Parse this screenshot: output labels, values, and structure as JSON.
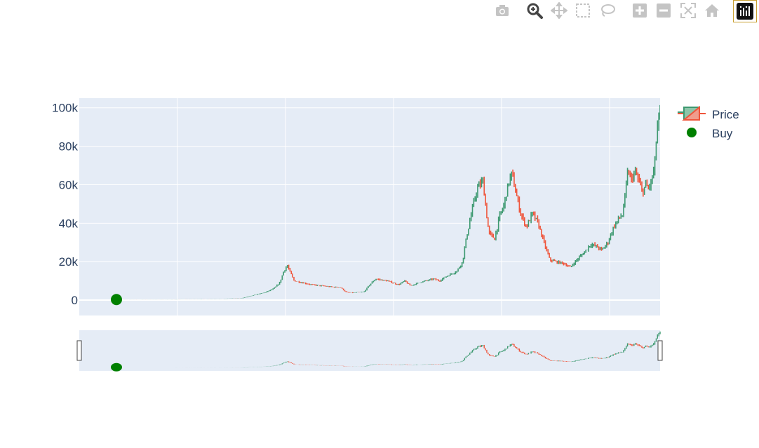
{
  "modebar": {
    "buttons": [
      {
        "name": "camera-icon",
        "title": "Download plot as a png"
      },
      {
        "name": "zoom-icon",
        "title": "Zoom",
        "active": true
      },
      {
        "name": "pan-icon",
        "title": "Pan"
      },
      {
        "name": "box-select-icon",
        "title": "Box Select"
      },
      {
        "name": "lasso-select-icon",
        "title": "Lasso Select"
      },
      {
        "name": "zoom-in-icon",
        "title": "Zoom in"
      },
      {
        "name": "zoom-out-icon",
        "title": "Zoom out"
      },
      {
        "name": "autoscale-icon",
        "title": "Autoscale"
      },
      {
        "name": "reset-axes-icon",
        "title": "Reset axes"
      },
      {
        "name": "plotly-logo-icon",
        "title": "Produced with Plotly"
      }
    ]
  },
  "colors": {
    "increasing": "#3d9970",
    "decreasing": "#ef553b",
    "buy": "#008000",
    "plot_bg": "#e5ecf6",
    "grid": "#ffffff",
    "text": "#2a3f5f",
    "logo_border": "#c8a032"
  },
  "chart_data": {
    "type": "candlestick",
    "title": "",
    "xlabel": "",
    "ylabel": "",
    "ylim": [
      -8000,
      105000
    ],
    "yticks": [
      0,
      20000,
      40000,
      60000,
      80000,
      100000
    ],
    "ytick_labels": [
      "0",
      "20k",
      "40k",
      "60k",
      "80k",
      "100k"
    ],
    "x_tick_labels": [],
    "grid": true,
    "legend_position": "top-right",
    "rangeslider": true,
    "series": [
      {
        "name": "Price",
        "kind": "ohlc",
        "x_fraction_range": [
          0.06,
          1.0
        ],
        "approx_close_path": [
          [
            0.06,
            200
          ],
          [
            0.1,
            250
          ],
          [
            0.15,
            300
          ],
          [
            0.2,
            500
          ],
          [
            0.25,
            700
          ],
          [
            0.28,
            1000
          ],
          [
            0.3,
            2500
          ],
          [
            0.32,
            4000
          ],
          [
            0.335,
            6000
          ],
          [
            0.345,
            9000
          ],
          [
            0.352,
            15000
          ],
          [
            0.358,
            18000
          ],
          [
            0.37,
            10000
          ],
          [
            0.4,
            8000
          ],
          [
            0.43,
            7000
          ],
          [
            0.45,
            6500
          ],
          [
            0.46,
            4000
          ],
          [
            0.47,
            3800
          ],
          [
            0.49,
            4200
          ],
          [
            0.5,
            8000
          ],
          [
            0.51,
            11000
          ],
          [
            0.53,
            10000
          ],
          [
            0.55,
            8000
          ],
          [
            0.56,
            10000
          ],
          [
            0.57,
            7500
          ],
          [
            0.59,
            9500
          ],
          [
            0.61,
            11000
          ],
          [
            0.62,
            10000
          ],
          [
            0.63,
            12000
          ],
          [
            0.65,
            15000
          ],
          [
            0.66,
            20000
          ],
          [
            0.665,
            30000
          ],
          [
            0.675,
            45000
          ],
          [
            0.685,
            58000
          ],
          [
            0.695,
            62000
          ],
          [
            0.7,
            48000
          ],
          [
            0.705,
            35000
          ],
          [
            0.715,
            32000
          ],
          [
            0.725,
            45000
          ],
          [
            0.73,
            48000
          ],
          [
            0.74,
            62000
          ],
          [
            0.745,
            66000
          ],
          [
            0.75,
            58000
          ],
          [
            0.76,
            45000
          ],
          [
            0.77,
            38000
          ],
          [
            0.78,
            45000
          ],
          [
            0.79,
            40000
          ],
          [
            0.8,
            30000
          ],
          [
            0.81,
            21000
          ],
          [
            0.82,
            20000
          ],
          [
            0.835,
            19000
          ],
          [
            0.845,
            17000
          ],
          [
            0.86,
            22000
          ],
          [
            0.87,
            25000
          ],
          [
            0.88,
            29000
          ],
          [
            0.89,
            28000
          ],
          [
            0.9,
            26000
          ],
          [
            0.91,
            30000
          ],
          [
            0.92,
            38000
          ],
          [
            0.93,
            43000
          ],
          [
            0.935,
            44000
          ],
          [
            0.94,
            55000
          ],
          [
            0.945,
            68000
          ],
          [
            0.95,
            62000
          ],
          [
            0.955,
            66000
          ],
          [
            0.96,
            65000
          ],
          [
            0.965,
            60000
          ],
          [
            0.97,
            56000
          ],
          [
            0.975,
            60000
          ],
          [
            0.98,
            58000
          ],
          [
            0.985,
            62000
          ],
          [
            0.99,
            68000
          ],
          [
            0.995,
            90000
          ],
          [
            1.0,
            97000
          ]
        ]
      },
      {
        "name": "Buy",
        "kind": "markers",
        "points": [
          [
            0.064,
            300
          ]
        ]
      }
    ]
  }
}
